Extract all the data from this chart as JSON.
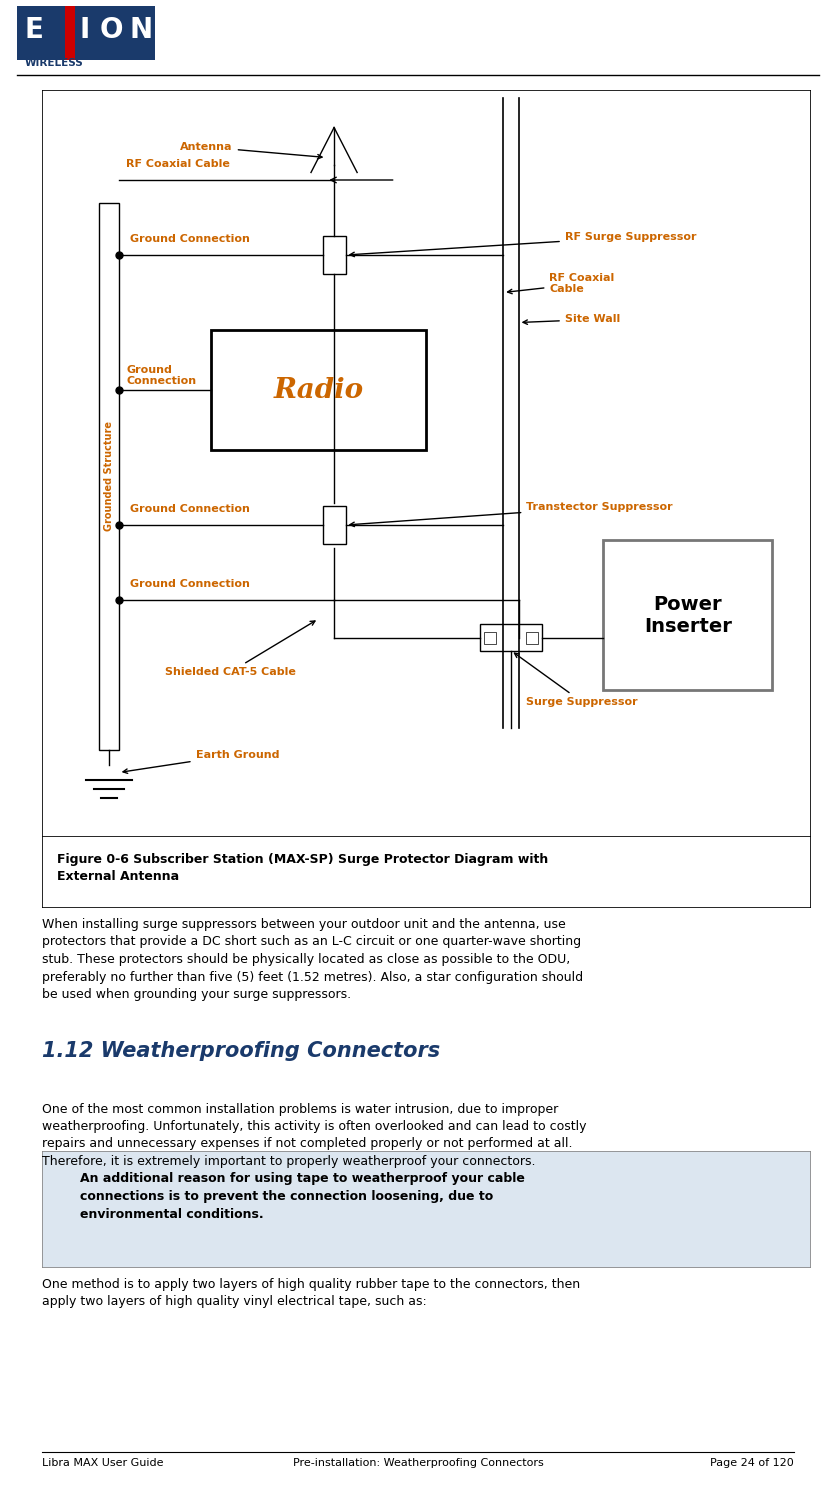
{
  "fig_caption": "Figure 0-6 Subscriber Station (MAX-SP) Surge Protector Diagram with\nExternal Antenna",
  "section_title": "1.12 Weatherproofing Connectors",
  "para1": "When installing surge suppressors between your outdoor unit and the antenna, use\nprotectors that provide a DC short such as an L-C circuit or one quarter-wave shorting\nstub. These protectors should be physically located as close as possible to the ODU,\npreferably no further than five (5) feet (1.52 metres). Also, a star configuration should\nbe used when grounding your surge suppressors.",
  "para2_intro": "One of the most common installation problems is water intrusion, due to improper\nweatherproofing. Unfortunately, this activity is often overlooked and can lead to costly\nrepairs and unnecessary expenses if not completed properly or not performed at all.\nTherefore, it is extremely important to properly weatherproof your connectors.",
  "box_text": "An additional reason for using tape to weatherproof your cable\nconnections is to prevent the connection loosening, due to\nenvironmental conditions.",
  "para2": "One method is to apply two layers of high quality rubber tape to the connectors, then\napply two layers of high quality vinyl electrical tape, such as:",
  "footer_left": "Libra MAX User Guide",
  "footer_center": "Pre-installation: Weatherproofing Connectors",
  "footer_right": "Page 24 of 120",
  "label_antenna": "Antenna",
  "label_rf_coax_top": "RF Coaxial Cable",
  "label_grounded": "Grounded Structure",
  "label_ground_conn1": "Ground Connection",
  "label_ground_conn2": "Ground\nConnection",
  "label_ground_conn3": "Ground Connection",
  "label_ground_conn4": "Ground Connection",
  "label_radio": "Radio",
  "label_rf_surge": "RF Surge Suppressor",
  "label_rf_coax2": "RF Coaxial\nCable",
  "label_site_wall": "Site Wall",
  "label_transtector": "Transtector Suppressor",
  "label_power_inserter": "Power\nInserter",
  "label_shielded": "Shielded CAT-5 Cable",
  "label_earth_ground": "Earth Ground",
  "label_surge_suppressor": "Surge Suppressor",
  "color_label": "#cc6600",
  "color_black": "#000000",
  "color_dark_navy": "#1a3a6b",
  "color_red": "#cc0000",
  "color_box_bg": "#dce6f0",
  "bg_color": "#ffffff"
}
